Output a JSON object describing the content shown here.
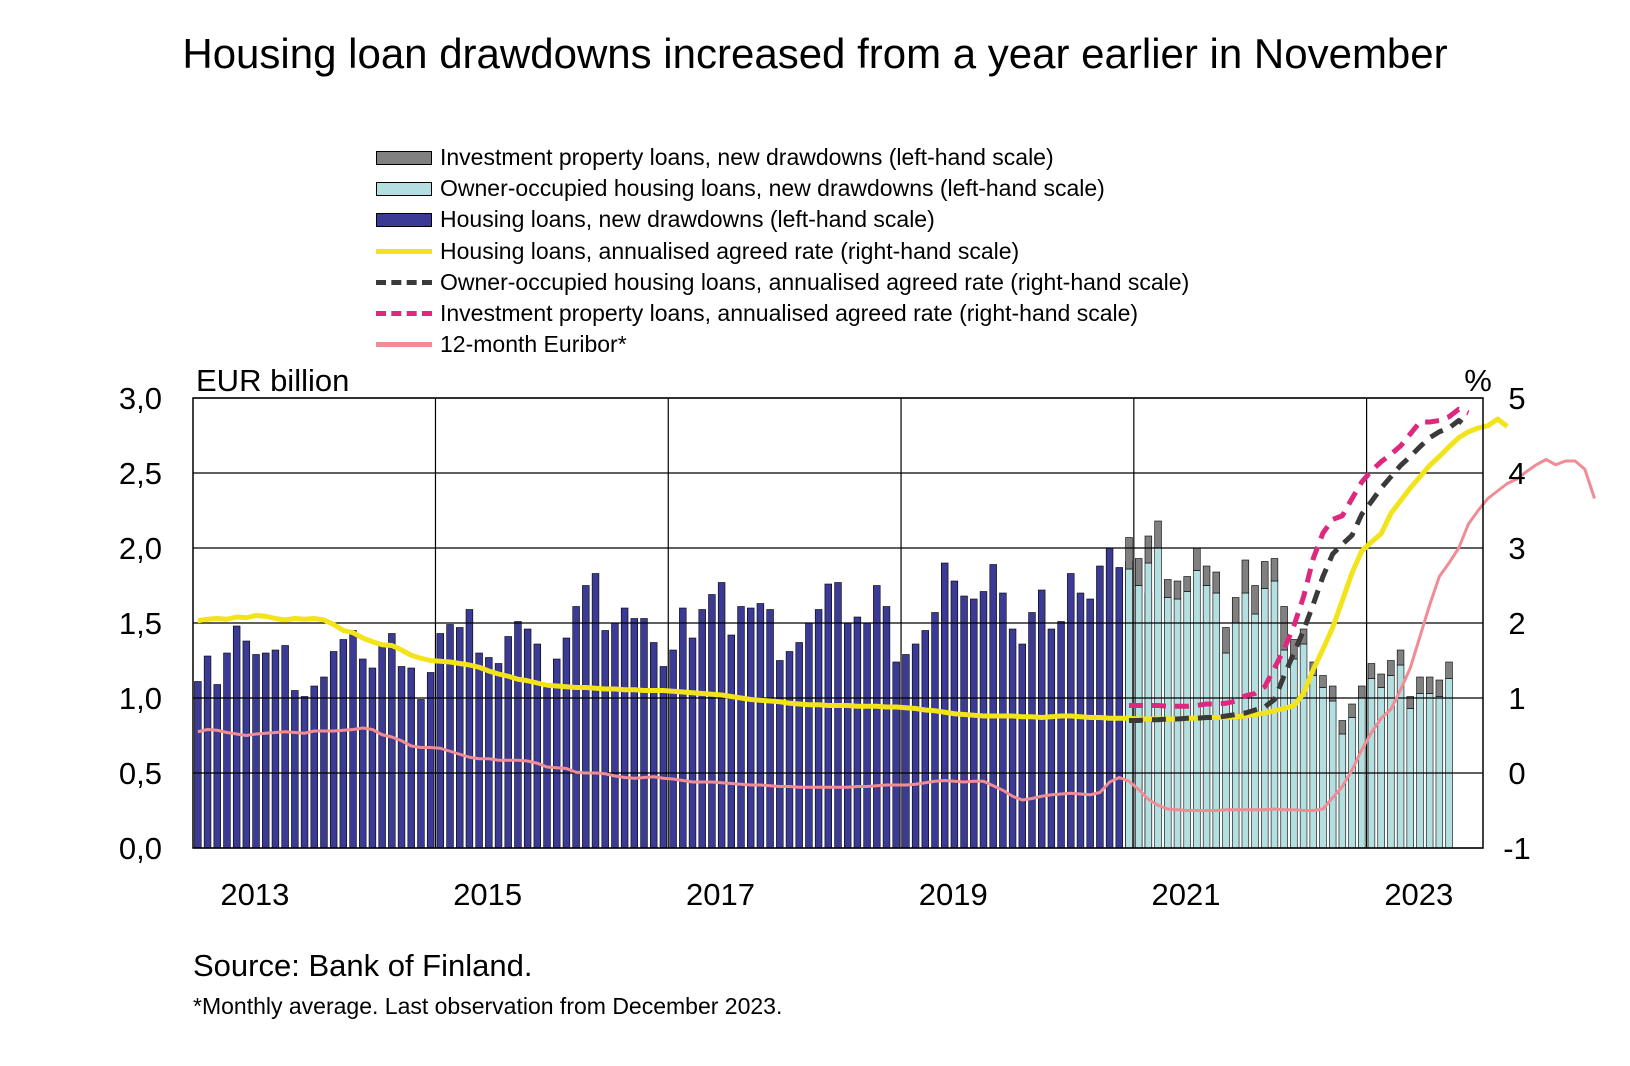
{
  "title": "Housing loan drawdowns increased from a year earlier in November",
  "legend": [
    {
      "label": "Investment property loans, new drawdowns (left-hand scale)",
      "kind": "box",
      "color": "#808080"
    },
    {
      "label": "Owner-occupied housing loans, new drawdowns (left-hand scale)",
      "kind": "box",
      "color": "#b4dfe0"
    },
    {
      "label": "Housing loans, new drawdowns (left-hand scale)",
      "kind": "box",
      "color": "#3b3b95"
    },
    {
      "label": "Housing loans, annualised agreed rate (right-hand scale)",
      "kind": "line",
      "color": "#f2e31a"
    },
    {
      "label": "Owner-occupied housing loans, annualised agreed rate (right-hand scale)",
      "kind": "dash",
      "color": "#3a3a3a"
    },
    {
      "label": "Investment property loans, annualised agreed rate (right-hand scale)",
      "kind": "dash",
      "color": "#e0277e"
    },
    {
      "label": "12-month Euribor*",
      "kind": "line",
      "color": "#f08c94"
    }
  ],
  "source": "Source: Bank of Finland.",
  "footnote": "*Monthly average. Last observation from December 2023.",
  "chart_data": {
    "type": "bar",
    "ylabel_left": "EUR billion",
    "ylabel_right": "%",
    "ylim_left": [
      0,
      3
    ],
    "ylim_right": [
      -1,
      5
    ],
    "yticks_left": [
      "0,0",
      "0,5",
      "1,0",
      "1,5",
      "2,0",
      "2,5",
      "3,0"
    ],
    "yticks_right": [
      "-1",
      "0",
      "1",
      "2",
      "3",
      "4",
      "5"
    ],
    "xtick_labels": [
      "2013",
      "2015",
      "2017",
      "2019",
      "2021",
      "2023"
    ],
    "grid": true,
    "x_start": "2012-12",
    "x_end": "2023-12",
    "series": [
      {
        "name": "Housing loans, new drawdowns (left-hand scale)",
        "type": "bar",
        "start": "2012-12",
        "values": [
          1.11,
          1.28,
          1.09,
          1.3,
          1.48,
          1.38,
          1.29,
          1.3,
          1.32,
          1.35,
          1.05,
          1.01,
          1.08,
          1.14,
          1.31,
          1.39,
          1.45,
          1.26,
          1.2,
          1.35,
          1.43,
          1.21,
          1.2,
          0.99,
          1.17,
          1.43,
          1.49,
          1.47,
          1.59,
          1.3,
          1.27,
          1.23,
          1.41,
          1.51,
          1.46,
          1.36,
          1.07,
          1.26,
          1.4,
          1.61,
          1.75,
          1.83,
          1.45,
          1.5,
          1.6,
          1.53,
          1.53,
          1.37,
          1.21,
          1.32,
          1.6,
          1.4,
          1.59,
          1.69,
          1.77,
          1.42,
          1.61,
          1.6,
          1.63,
          1.59,
          1.25,
          1.31,
          1.37,
          1.5,
          1.59,
          1.76,
          1.77,
          1.5,
          1.54,
          1.5,
          1.75,
          1.61,
          1.24,
          1.29,
          1.36,
          1.45,
          1.57,
          1.9,
          1.78,
          1.68,
          1.66,
          1.71,
          1.89,
          1.7,
          1.46,
          1.36,
          1.57,
          1.72,
          1.46,
          1.51,
          1.83,
          1.7,
          1.66,
          1.88,
          2.0,
          1.87,
          1.91,
          1.38,
          1.7
        ]
      },
      {
        "name": "Owner-occupied housing loans, new drawdowns (left-hand scale)",
        "type": "bar",
        "start": "2020-12",
        "values": [
          1.86,
          1.75,
          1.9,
          2.0,
          1.67,
          1.66,
          1.71,
          1.85,
          1.75,
          1.7,
          1.3,
          1.5,
          1.7,
          1.56,
          1.73,
          1.78,
          1.32,
          1.26,
          1.36,
          1.15,
          1.07,
          0.98,
          0.76,
          0.87,
          1.0,
          1.13,
          1.07,
          1.15,
          1.22,
          0.93,
          1.03,
          1.03,
          1.01,
          1.13
        ]
      },
      {
        "name": "Investment property loans, new drawdowns (left-hand scale)",
        "type": "bar",
        "start": "2020-12",
        "values": [
          0.21,
          0.18,
          0.18,
          0.18,
          0.12,
          0.12,
          0.1,
          0.15,
          0.13,
          0.14,
          0.17,
          0.17,
          0.22,
          0.19,
          0.18,
          0.15,
          0.29,
          0.13,
          0.1,
          0.09,
          0.08,
          0.1,
          0.09,
          0.09,
          0.08,
          0.1,
          0.09,
          0.1,
          0.1,
          0.08,
          0.11,
          0.11,
          0.11,
          0.11
        ]
      },
      {
        "name": "Housing loans, annualised agreed rate (right-hand scale)",
        "type": "line",
        "start": "2012-12",
        "values": [
          2.03,
          2.05,
          2.06,
          2.05,
          2.08,
          2.07,
          2.1,
          2.09,
          2.06,
          2.04,
          2.06,
          2.05,
          2.06,
          2.04,
          1.98,
          1.9,
          1.87,
          1.8,
          1.75,
          1.71,
          1.7,
          1.64,
          1.57,
          1.53,
          1.5,
          1.49,
          1.48,
          1.46,
          1.44,
          1.41,
          1.36,
          1.32,
          1.29,
          1.25,
          1.23,
          1.2,
          1.17,
          1.16,
          1.15,
          1.14,
          1.14,
          1.13,
          1.12,
          1.12,
          1.11,
          1.11,
          1.1,
          1.1,
          1.1,
          1.09,
          1.08,
          1.07,
          1.06,
          1.05,
          1.04,
          1.02,
          1.0,
          0.98,
          0.97,
          0.96,
          0.95,
          0.93,
          0.92,
          0.91,
          0.91,
          0.9,
          0.9,
          0.9,
          0.89,
          0.89,
          0.89,
          0.88,
          0.88,
          0.87,
          0.86,
          0.84,
          0.83,
          0.81,
          0.79,
          0.78,
          0.77,
          0.76,
          0.76,
          0.76,
          0.76,
          0.75,
          0.75,
          0.74,
          0.75,
          0.76,
          0.76,
          0.75,
          0.74,
          0.74,
          0.73,
          0.73,
          0.73,
          0.72,
          0.72,
          0.72,
          0.72,
          0.72,
          0.73,
          0.73,
          0.74,
          0.74,
          0.74,
          0.75,
          0.76,
          0.78,
          0.8,
          0.83,
          0.86,
          0.9,
          1.06,
          1.38,
          1.65,
          1.94,
          2.3,
          2.67,
          2.96,
          3.08,
          3.19,
          3.46,
          3.63,
          3.8,
          3.95,
          4.1,
          4.22,
          4.35,
          4.47,
          4.55,
          4.6,
          4.63,
          4.72,
          4.62
        ]
      },
      {
        "name": "Owner-occupied housing loans, annualised agreed rate (right-hand scale)",
        "type": "dash",
        "start": "2020-12",
        "values": [
          0.7,
          0.7,
          0.71,
          0.71,
          0.72,
          0.72,
          0.73,
          0.73,
          0.74,
          0.74,
          0.76,
          0.78,
          0.8,
          0.84,
          0.88,
          0.98,
          1.3,
          1.6,
          1.9,
          2.25,
          2.62,
          2.92,
          3.05,
          3.17,
          3.45,
          3.62,
          3.8,
          3.95,
          4.1,
          4.22,
          4.35,
          4.47,
          4.55,
          4.6,
          4.7,
          4.6
        ]
      },
      {
        "name": "Investment property loans, annualised agreed rate (right-hand scale)",
        "type": "dash",
        "start": "2020-12",
        "values": [
          0.9,
          0.9,
          0.9,
          0.9,
          0.89,
          0.89,
          0.89,
          0.9,
          0.92,
          0.92,
          0.93,
          0.96,
          1.03,
          1.06,
          1.15,
          1.4,
          1.65,
          1.96,
          2.35,
          2.86,
          3.2,
          3.38,
          3.43,
          3.66,
          3.88,
          4.03,
          4.15,
          4.25,
          4.36,
          4.52,
          4.68,
          4.68,
          4.7,
          4.75,
          4.85,
          4.8
        ]
      },
      {
        "name": "12-month Euribor*",
        "type": "line",
        "start": "2012-12",
        "values": [
          0.55,
          0.58,
          0.57,
          0.54,
          0.52,
          0.5,
          0.52,
          0.53,
          0.54,
          0.55,
          0.54,
          0.53,
          0.56,
          0.56,
          0.56,
          0.57,
          0.58,
          0.6,
          0.58,
          0.51,
          0.48,
          0.43,
          0.36,
          0.34,
          0.34,
          0.33,
          0.29,
          0.25,
          0.21,
          0.19,
          0.19,
          0.17,
          0.17,
          0.17,
          0.16,
          0.13,
          0.08,
          0.07,
          0.06,
          0.01,
          0.0,
          0.0,
          -0.01,
          -0.04,
          -0.06,
          -0.07,
          -0.06,
          -0.05,
          -0.07,
          -0.08,
          -0.1,
          -0.12,
          -0.12,
          -0.12,
          -0.13,
          -0.14,
          -0.15,
          -0.16,
          -0.16,
          -0.17,
          -0.18,
          -0.18,
          -0.19,
          -0.19,
          -0.19,
          -0.19,
          -0.19,
          -0.19,
          -0.18,
          -0.18,
          -0.17,
          -0.16,
          -0.16,
          -0.16,
          -0.15,
          -0.13,
          -0.11,
          -0.1,
          -0.11,
          -0.12,
          -0.11,
          -0.11,
          -0.17,
          -0.23,
          -0.31,
          -0.36,
          -0.34,
          -0.31,
          -0.29,
          -0.28,
          -0.27,
          -0.28,
          -0.29,
          -0.26,
          -0.12,
          -0.06,
          -0.11,
          -0.22,
          -0.35,
          -0.43,
          -0.48,
          -0.49,
          -0.5,
          -0.5,
          -0.5,
          -0.5,
          -0.49,
          -0.49,
          -0.49,
          -0.49,
          -0.49,
          -0.48,
          -0.49,
          -0.49,
          -0.5,
          -0.5,
          -0.48,
          -0.33,
          -0.18,
          0.04,
          0.31,
          0.54,
          0.73,
          0.85,
          1.11,
          1.4,
          1.82,
          2.24,
          2.62,
          2.8,
          3.0,
          3.32,
          3.5,
          3.66,
          3.76,
          3.86,
          3.92,
          4.02,
          4.11,
          4.18,
          4.11,
          4.16,
          4.16,
          4.05,
          3.66
        ]
      }
    ]
  }
}
